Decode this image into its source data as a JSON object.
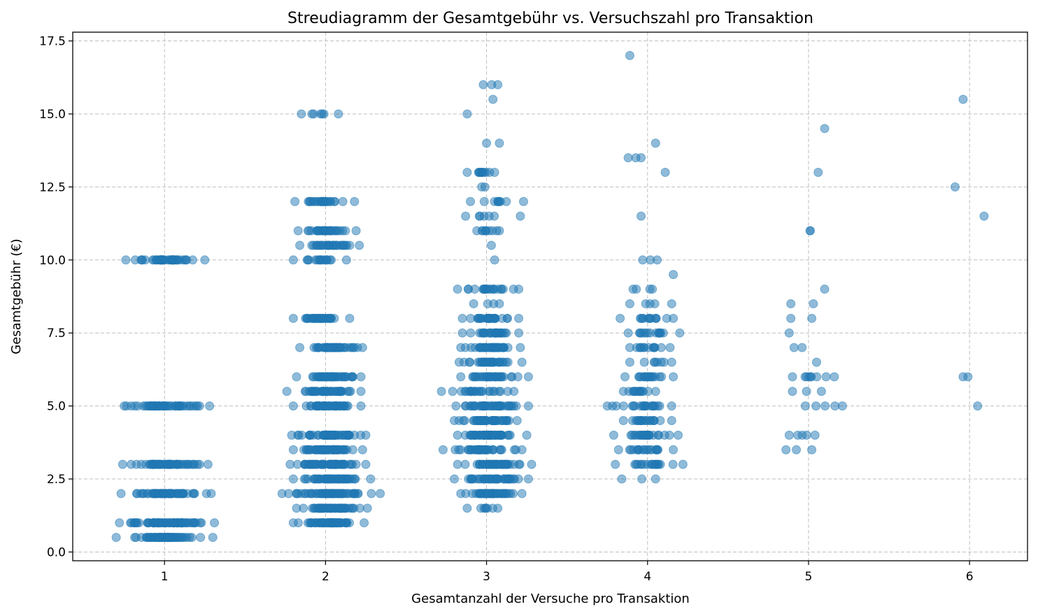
{
  "chart_data": {
    "type": "scatter",
    "title": "Streudiagramm der Gesamtgebühr vs. Versuchszahl pro Transaktion",
    "xlabel": "Gesamtanzahl der Versuche pro Transaktion",
    "ylabel": "Gesamtgebühr (€)",
    "xlim": [
      0.43,
      6.36
    ],
    "ylim": [
      -0.3,
      17.8
    ],
    "xticks": [
      1,
      2,
      3,
      4,
      5,
      6
    ],
    "xtick_labels": [
      "1",
      "2",
      "3",
      "4",
      "5",
      "6"
    ],
    "yticks": [
      0.0,
      2.5,
      5.0,
      7.5,
      10.0,
      12.5,
      15.0,
      17.5
    ],
    "ytick_labels": [
      "0.0",
      "2.5",
      "5.0",
      "7.5",
      "10.0",
      "12.5",
      "15.0",
      "17.5"
    ],
    "grid": true,
    "marker_color": "#1f77b4",
    "marker_alpha": 0.5,
    "horizontal_jitter": true,
    "clusters": [
      {
        "attempts": 1,
        "fees": [
          0.5,
          1.0,
          2.0,
          3.0,
          5.0,
          10.0
        ],
        "spread": [
          [
            0.7,
            1.3
          ],
          [
            0.72,
            1.31
          ],
          [
            0.73,
            1.29
          ],
          [
            0.74,
            1.27
          ],
          [
            0.75,
            1.28
          ],
          [
            0.76,
            1.25
          ]
        ],
        "density": [
          70,
          70,
          60,
          60,
          55,
          50
        ]
      },
      {
        "attempts": 2,
        "fees": [
          1.0,
          1.5,
          2.0,
          2.5,
          3.0,
          3.5,
          4.0,
          5.0,
          5.5,
          6.0,
          7.0,
          8.0,
          10.0,
          10.5,
          11.0,
          12.0,
          15.0
        ],
        "spread": [
          [
            1.8,
            2.24
          ],
          [
            1.82,
            2.26
          ],
          [
            1.73,
            2.34
          ],
          [
            1.8,
            2.28
          ],
          [
            1.78,
            2.25
          ],
          [
            1.8,
            2.23
          ],
          [
            1.79,
            2.25
          ],
          [
            1.8,
            2.22
          ],
          [
            1.76,
            2.22
          ],
          [
            1.82,
            2.22
          ],
          [
            1.84,
            2.23
          ],
          [
            1.8,
            2.15
          ],
          [
            1.8,
            2.13
          ],
          [
            1.84,
            2.21
          ],
          [
            1.83,
            2.19
          ],
          [
            1.81,
            2.18
          ],
          [
            1.85,
            2.08
          ]
        ],
        "density": [
          60,
          60,
          65,
          55,
          60,
          55,
          60,
          45,
          45,
          50,
          45,
          35,
          18,
          30,
          35,
          25,
          7
        ]
      },
      {
        "attempts": 3,
        "fees": [
          1.5,
          2.0,
          2.5,
          3.0,
          3.5,
          4.0,
          4.5,
          5.0,
          5.5,
          6.0,
          6.5,
          7.0,
          7.5,
          8.0,
          8.5,
          9.0,
          10.0,
          10.5,
          11.0,
          11.5,
          12.0,
          12.5,
          13.0,
          14.0,
          15.0,
          15.5,
          16.0
        ],
        "spread": [
          [
            2.88,
            3.07
          ],
          [
            2.84,
            3.22
          ],
          [
            2.8,
            3.26
          ],
          [
            2.82,
            3.28
          ],
          [
            2.73,
            3.22
          ],
          [
            2.82,
            3.25
          ],
          [
            2.8,
            3.19
          ],
          [
            2.81,
            3.26
          ],
          [
            2.72,
            3.17
          ],
          [
            2.84,
            3.26
          ],
          [
            2.83,
            3.22
          ],
          [
            2.84,
            3.21
          ],
          [
            2.85,
            3.2
          ],
          [
            2.85,
            3.2
          ],
          [
            2.92,
            3.08
          ],
          [
            2.82,
            3.2
          ],
          [
            3.05,
            3.05
          ],
          [
            3.03,
            3.03
          ],
          [
            2.94,
            3.08
          ],
          [
            2.87,
            3.21
          ],
          [
            2.9,
            3.23
          ],
          [
            2.97,
            2.99
          ],
          [
            2.88,
            3.05
          ],
          [
            3.0,
            3.08
          ],
          [
            2.88,
            2.88
          ],
          [
            3.04,
            3.04
          ],
          [
            2.98,
            3.07
          ]
        ],
        "density": [
          8,
          50,
          45,
          45,
          40,
          50,
          45,
          45,
          25,
          35,
          40,
          40,
          30,
          30,
          4,
          22,
          1,
          1,
          10,
          7,
          10,
          2,
          12,
          2,
          1,
          1,
          3
        ]
      },
      {
        "attempts": 4,
        "fees": [
          2.5,
          3.0,
          3.5,
          4.0,
          4.5,
          5.0,
          5.5,
          6.0,
          6.5,
          7.0,
          7.5,
          8.0,
          8.5,
          9.0,
          9.5,
          10.0,
          11.5,
          13.0,
          13.5,
          14.0,
          17.0
        ],
        "spread": [
          [
            3.84,
            4.05
          ],
          [
            3.8,
            4.22
          ],
          [
            3.82,
            4.16
          ],
          [
            3.79,
            4.19
          ],
          [
            3.85,
            4.15
          ],
          [
            3.75,
            4.15
          ],
          [
            3.85,
            4.05
          ],
          [
            3.86,
            4.16
          ],
          [
            3.89,
            4.15
          ],
          [
            3.89,
            4.14
          ],
          [
            3.88,
            4.2
          ],
          [
            3.83,
            4.16
          ],
          [
            3.89,
            4.15
          ],
          [
            3.91,
            4.03
          ],
          [
            4.16,
            4.16
          ],
          [
            3.97,
            4.06
          ],
          [
            3.96,
            3.96
          ],
          [
            4.11,
            4.11
          ],
          [
            3.88,
            3.96
          ],
          [
            4.05,
            4.05
          ],
          [
            3.89,
            3.89
          ]
        ],
        "density": [
          3,
          20,
          20,
          25,
          20,
          22,
          15,
          18,
          8,
          14,
          16,
          14,
          5,
          4,
          1,
          3,
          1,
          1,
          3,
          1,
          1
        ]
      },
      {
        "attempts": 5,
        "fees": [
          3.5,
          4.0,
          5.0,
          5.5,
          6.0,
          6.5,
          7.0,
          7.5,
          8.0,
          8.5,
          9.0,
          11.0,
          13.0,
          14.5
        ],
        "spread": [
          [
            4.86,
            5.02
          ],
          [
            4.88,
            5.04
          ],
          [
            4.98,
            5.21
          ],
          [
            4.9,
            5.08
          ],
          [
            4.9,
            5.16
          ],
          [
            5.05,
            5.05
          ],
          [
            4.91,
            4.96
          ],
          [
            4.88,
            4.88
          ],
          [
            4.89,
            5.02
          ],
          [
            4.89,
            5.03
          ],
          [
            5.1,
            5.1
          ],
          [
            5.01,
            5.01
          ],
          [
            5.06,
            5.06
          ],
          [
            5.1,
            5.1
          ]
        ],
        "density": [
          3,
          5,
          5,
          3,
          9,
          1,
          2,
          1,
          2,
          2,
          1,
          2,
          1,
          1
        ]
      },
      {
        "attempts": 6,
        "fees": [
          5.0,
          6.0,
          11.5,
          12.5,
          15.5
        ],
        "spread": [
          [
            6.05,
            6.05
          ],
          [
            5.96,
            5.99
          ],
          [
            6.09,
            6.09
          ],
          [
            5.91,
            5.91
          ],
          [
            5.96,
            5.96
          ]
        ],
        "density": [
          1,
          2,
          1,
          1,
          1
        ]
      }
    ]
  }
}
